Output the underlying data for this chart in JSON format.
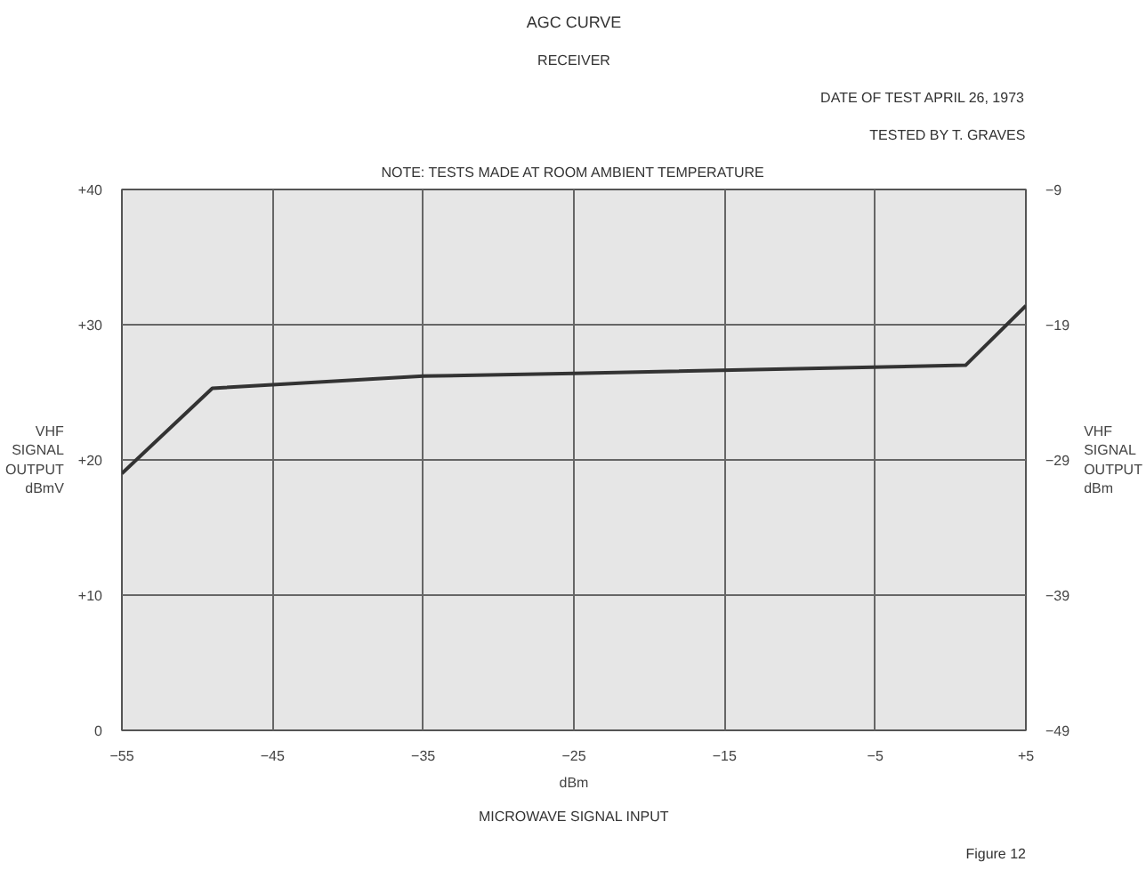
{
  "chart_data": {
    "type": "line",
    "title": "AGC CURVE",
    "subtitle": "RECEIVER",
    "xlabel": "dBm",
    "ylabel": "VHF\nSIGNAL\nOUTPUT\ndBmV",
    "y2label": "VHF\nSIGNAL\nOUTPUT\ndBm",
    "annotations": [
      "DATE OF TEST APRIL 26, 1973",
      "TESTED BY T. GRAVES",
      "NOTE: TESTS MADE AT ROOM AMBIENT TEMPERATURE",
      "MICROWAVE SIGNAL INPUT",
      "Figure 12"
    ],
    "x": [
      -55,
      -49,
      -35,
      -25,
      1,
      5
    ],
    "series": [
      {
        "color": "#333333",
        "values": [
          19.0,
          25.3,
          26.2,
          26.4,
          27.0,
          31.4
        ]
      }
    ],
    "xlim": [
      -55,
      5
    ],
    "xticks": [
      -55,
      -45,
      -35,
      -25,
      -15,
      -5,
      {
        "value": 5,
        "label": "+5"
      }
    ],
    "ylim": [
      0,
      40
    ],
    "yticks": [
      0,
      {
        "value": 10,
        "label": "+10"
      },
      {
        "value": 20,
        "label": "+20"
      },
      {
        "value": 30,
        "label": "+30"
      },
      {
        "value": 40,
        "label": "+40"
      }
    ],
    "y2lim": [
      -49,
      -9
    ],
    "y2ticks": [
      -49,
      -39,
      -29,
      -19,
      -9
    ],
    "grid": true,
    "marker": "none",
    "line_style": "solid"
  }
}
